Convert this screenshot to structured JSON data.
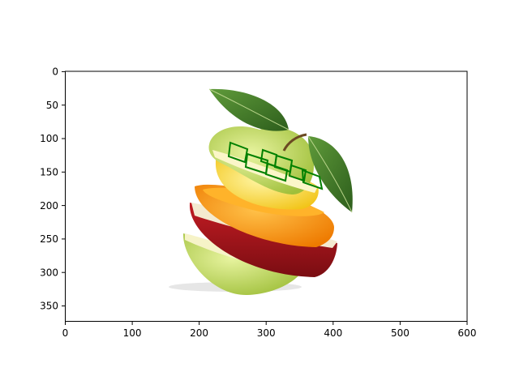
{
  "axes": {
    "x_ticks": [
      "0",
      "100",
      "200",
      "300",
      "400",
      "500",
      "600"
    ],
    "y_ticks": [
      "0",
      "50",
      "100",
      "150",
      "200",
      "250",
      "300",
      "350"
    ]
  },
  "image": {
    "subject": "stacked fruit slices (apple, orange, lemon, red apple, green apple) with leaves"
  },
  "annotations": {
    "box_color": "#008000",
    "count": 7
  }
}
